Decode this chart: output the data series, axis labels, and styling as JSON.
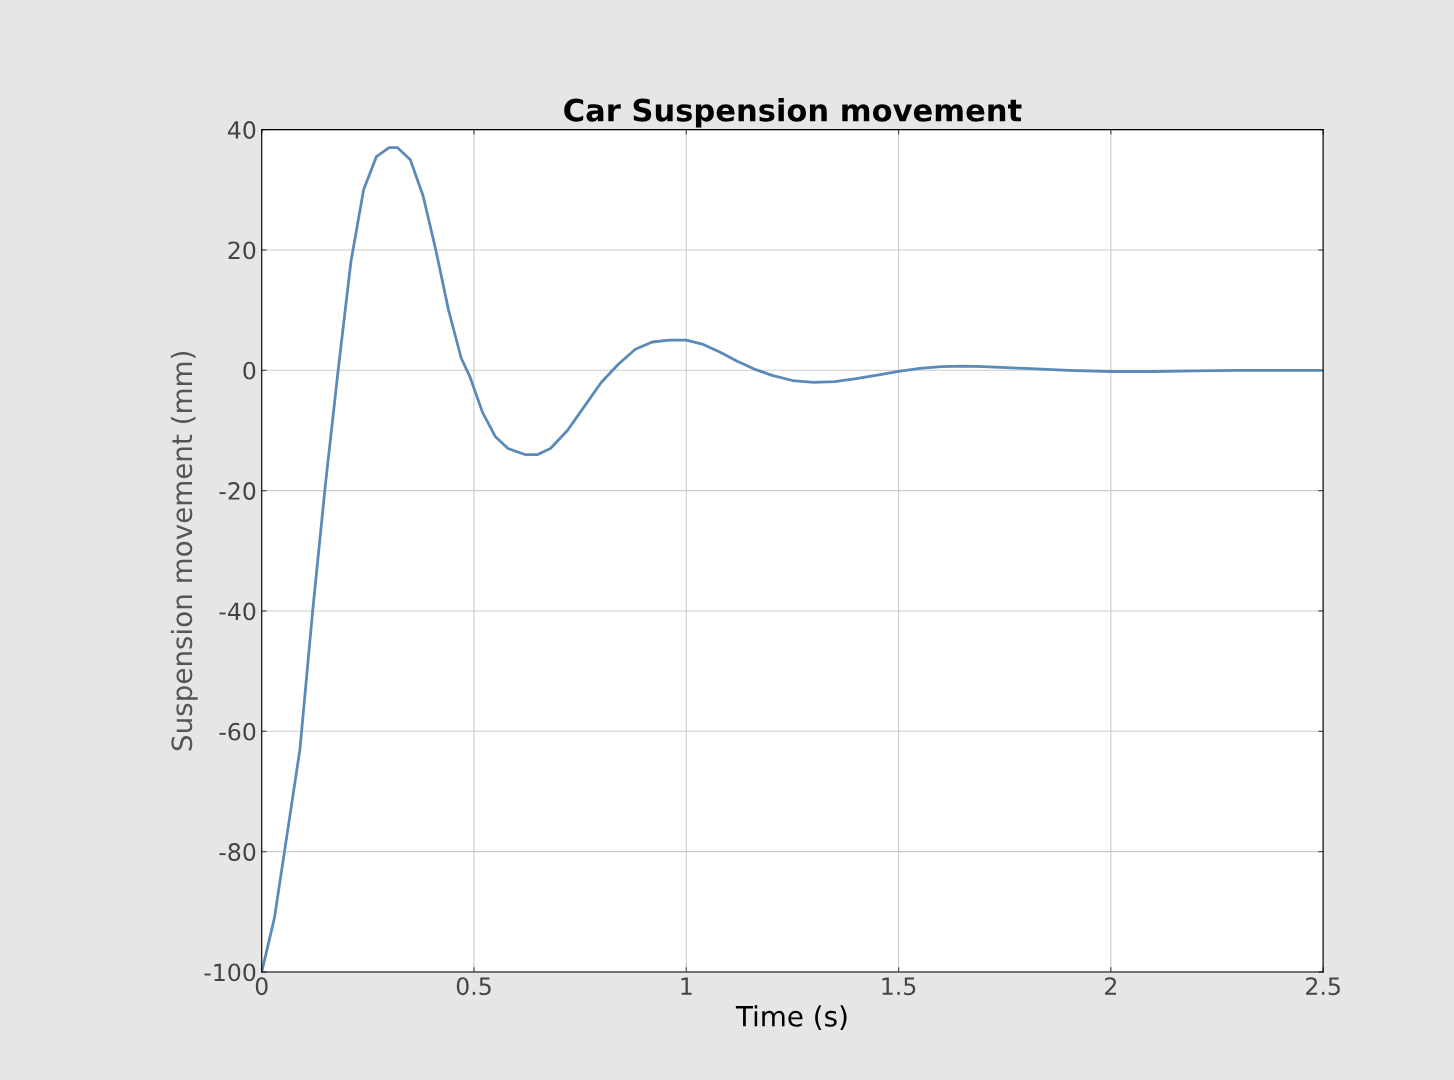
{
  "chart_data": {
    "type": "line",
    "title": "Car Suspension movement",
    "xlabel": "Time (s)",
    "ylabel": "Suspension movement (mm)",
    "series": [
      {
        "color": "#5a8ab8",
        "x": [
          0,
          0.03,
          0.06,
          0.09,
          0.12,
          0.15,
          0.18,
          0.21,
          0.24,
          0.27,
          0.3,
          0.32,
          0.35,
          0.38,
          0.41,
          0.44,
          0.47,
          0.49,
          0.52,
          0.55,
          0.58,
          0.62,
          0.65,
          0.68,
          0.72,
          0.76,
          0.8,
          0.84,
          0.88,
          0.92,
          0.96,
          1.0,
          1.04,
          1.08,
          1.12,
          1.16,
          1.2,
          1.25,
          1.3,
          1.35,
          1.4,
          1.45,
          1.5,
          1.55,
          1.6,
          1.65,
          1.7,
          1.8,
          1.9,
          2.0,
          2.1,
          2.2,
          2.3,
          2.4,
          2.5
        ],
        "values": [
          -100,
          -91,
          -77,
          -63,
          -40,
          -19,
          0,
          18,
          30,
          35.5,
          37,
          37,
          35,
          29,
          20,
          10,
          2,
          -1,
          -7,
          -11,
          -13,
          -14,
          -14,
          -13,
          -10,
          -6,
          -2,
          1,
          3.5,
          4.7,
          5,
          5,
          4.3,
          3,
          1.5,
          0.2,
          -0.8,
          -1.7,
          -2,
          -1.9,
          -1.4,
          -0.8,
          -0.2,
          0.3,
          0.6,
          0.7,
          0.6,
          0.3,
          0,
          -0.2,
          -0.2,
          -0.1,
          0,
          0,
          0
        ]
      }
    ],
    "xlim": [
      0,
      2.5
    ],
    "xticks": [
      0,
      0.5,
      1,
      1.5,
      2,
      2.5
    ],
    "ylim": [
      -100,
      40
    ],
    "yticks": [
      -100,
      -80,
      -60,
      -40,
      -20,
      0,
      20,
      40
    ],
    "grid": true,
    "marker": "none",
    "line_style": "solid"
  }
}
